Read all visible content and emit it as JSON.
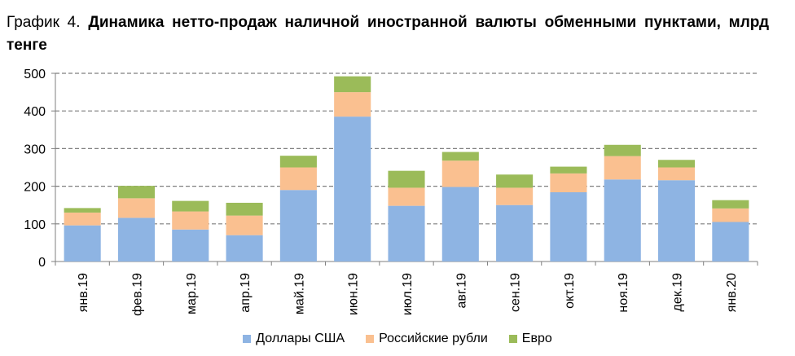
{
  "title": {
    "lead": "График 4.",
    "main": "Динамика нетто-продаж наличной иностранной валюты обменными пунктами, млрд тенге"
  },
  "chart_data": {
    "type": "bar",
    "stacked": true,
    "categories": [
      "янв.19",
      "фев.19",
      "мар.19",
      "апр.19",
      "май.19",
      "июн.19",
      "июл.19",
      "авг.19",
      "сен.19",
      "окт.19",
      "ноя.19",
      "дек.19",
      "янв.20"
    ],
    "series": [
      {
        "name": "Доллары США",
        "color": "#8eb4e3",
        "values": [
          96,
          116,
          85,
          70,
          190,
          385,
          148,
          198,
          150,
          184,
          218,
          216,
          105
        ]
      },
      {
        "name": "Российские рубли",
        "color": "#fac090",
        "values": [
          34,
          52,
          48,
          52,
          60,
          65,
          48,
          70,
          46,
          50,
          62,
          34,
          36
        ]
      },
      {
        "name": "Евро",
        "color": "#9bbb59",
        "values": [
          12,
          33,
          28,
          34,
          31,
          42,
          45,
          23,
          35,
          18,
          30,
          20,
          22
        ]
      }
    ],
    "y_ticks": [
      "0",
      "100",
      "200",
      "300",
      "400",
      "500"
    ],
    "ylim": [
      0,
      500
    ],
    "grid": true,
    "legend_position": "bottom"
  }
}
